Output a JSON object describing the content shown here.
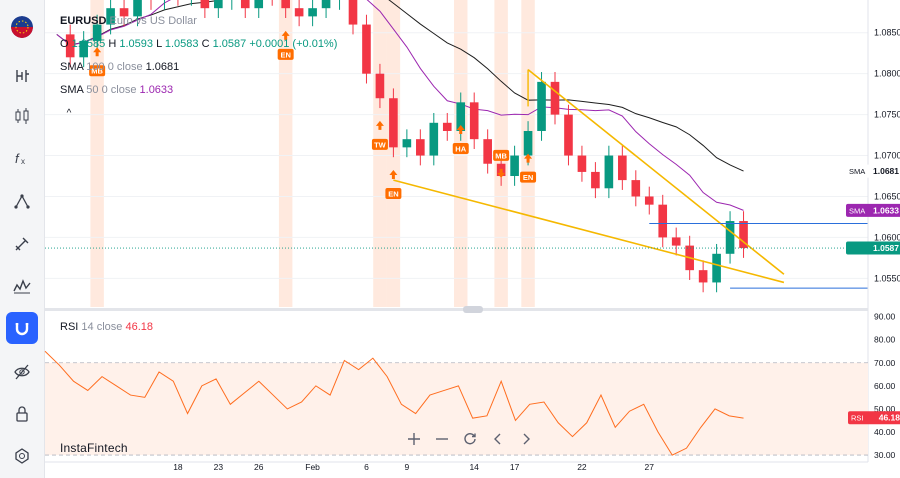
{
  "legend": {
    "symbol": "EURUSD",
    "description": "Euro vs US Dollar",
    "o_label": "O",
    "o_value": "1.0585",
    "h_label": "H",
    "h_value": "1.0593",
    "l_label": "L",
    "l_value": "1.0583",
    "c_label": "C",
    "c_value": "1.0587",
    "change": "+0.0001 (+0.01%)",
    "sma1_name": "SMA",
    "sma1_params": "100 0 close",
    "sma1_value": "1.0681",
    "sma2_name": "SMA",
    "sma2_params": "50 0 close",
    "sma2_value": "1.0633",
    "collapse_glyph": "^"
  },
  "rsi_legend": {
    "name": "RSI",
    "params": "14 close",
    "value": "46.18"
  },
  "watermark": "InstaFintech",
  "nav_icons": [
    "zoom-in-icon",
    "zoom-out-icon",
    "reset-icon",
    "scroll-left-icon",
    "scroll-right-icon"
  ],
  "sidebar_icons": [
    "flag-icon",
    "line-tool-icon",
    "candles-icon",
    "indicators-icon",
    "drawing-icon",
    "brush-icon",
    "pattern-icon",
    "magnet-icon",
    "hide-drawings-icon",
    "lock-icon",
    "settings-icon"
  ],
  "colors": {
    "up": "#089981",
    "down": "#f23645",
    "sma100": "#1e1e1e",
    "sma50": "#9c27b0",
    "wedge": "#f5b800",
    "rsi": "#ff6d1f",
    "pattern_marker": "#ff6d00",
    "active_tool": "#2962ff",
    "level_line": "#2a6fdb"
  },
  "chart_data": [
    {
      "type": "candlestick",
      "symbol": "EURUSD",
      "price_axis": {
        "ticks": [
          1.055,
          1.06,
          1.065,
          1.07,
          1.075,
          1.08,
          1.085
        ],
        "labels": [
          "1.0550",
          "1.0600",
          "1.0650",
          "1.0700",
          "1.0750",
          "1.0800",
          "1.0850"
        ],
        "range": [
          1.0515,
          1.089
        ]
      },
      "time_axis": {
        "labels": [
          "18",
          "23",
          "26",
          "Feb",
          "6",
          "9",
          "14",
          "17",
          "22",
          "27"
        ],
        "label_positions_x": [
          9.0,
          12.0,
          15.0,
          19.0,
          23.0,
          26.0,
          31.0,
          34.0,
          39.0,
          44.0
        ]
      },
      "series": [
        {
          "name": "EURUSD",
          "kind": "ohlc_path",
          "close_path": [
            [
              0,
              1.0848
            ],
            [
              1,
              1.082
            ],
            [
              2,
              1.084
            ],
            [
              3,
              1.086
            ],
            [
              4,
              1.088
            ],
            [
              5,
              1.087
            ],
            [
              6,
              1.09
            ],
            [
              7,
              1.089
            ],
            [
              8,
              1.091
            ],
            [
              9,
              1.0895
            ],
            [
              10,
              1.09
            ],
            [
              11,
              1.088
            ],
            [
              12,
              1.089
            ],
            [
              13,
              1.09
            ],
            [
              14,
              1.088
            ],
            [
              15,
              1.0905
            ],
            [
              16,
              1.0895
            ],
            [
              17,
              1.088
            ],
            [
              18,
              1.087
            ],
            [
              19,
              1.088
            ],
            [
              20,
              1.089
            ],
            [
              21,
              1.09
            ],
            [
              22,
              1.086
            ],
            [
              23,
              1.08
            ],
            [
              24,
              1.077
            ],
            [
              25,
              1.071
            ],
            [
              26,
              1.072
            ],
            [
              27,
              1.07
            ],
            [
              28,
              1.074
            ],
            [
              29,
              1.073
            ],
            [
              30,
              1.0765
            ],
            [
              31,
              1.072
            ],
            [
              32,
              1.069
            ],
            [
              33,
              1.0675
            ],
            [
              34,
              1.07
            ],
            [
              35,
              1.073
            ],
            [
              36,
              1.079
            ],
            [
              37,
              1.075
            ],
            [
              38,
              1.07
            ],
            [
              39,
              1.068
            ],
            [
              40,
              1.066
            ],
            [
              41,
              1.07
            ],
            [
              42,
              1.067
            ],
            [
              43,
              1.065
            ],
            [
              44,
              1.064
            ],
            [
              45,
              1.06
            ],
            [
              46,
              1.059
            ],
            [
              47,
              1.056
            ],
            [
              48,
              1.0545
            ],
            [
              49,
              1.058
            ],
            [
              50,
              1.062
            ],
            [
              51,
              1.0587
            ]
          ]
        },
        {
          "name": "SMA 100",
          "value_label": "1.0681"
        },
        {
          "name": "SMA 50",
          "value_label": "1.0633"
        }
      ],
      "last_price": 1.0587,
      "sma100_last": 1.0681,
      "sma50_last": 1.0633,
      "pattern_markers": [
        {
          "label": "MB",
          "direction": "up",
          "date_index": 3
        },
        {
          "label": "EN",
          "direction": "up",
          "date_index": 17
        },
        {
          "label": "TW",
          "direction": "up",
          "date_index": 24
        },
        {
          "label": "EN",
          "direction": "up",
          "date_index": 25
        },
        {
          "label": "HA",
          "direction": "up",
          "date_index": 30
        },
        {
          "label": "MB",
          "direction": "down",
          "date_index": 33
        },
        {
          "label": "EN",
          "direction": "up",
          "date_index": 35
        }
      ]
    },
    {
      "type": "line",
      "name": "RSI",
      "params": "14 close",
      "y_axis": {
        "ticks": [
          30,
          40,
          50,
          60,
          70,
          80,
          90
        ],
        "labels": [
          "30.00",
          "40.00",
          "50.00",
          "60.00",
          "70.00",
          "80.00",
          "90.00"
        ],
        "range": [
          27,
          92
        ]
      },
      "bands": [
        30,
        70
      ],
      "last_value": 46.18,
      "values": [
        75,
        69,
        62,
        58,
        64,
        60,
        56,
        55,
        66,
        62,
        48,
        60,
        63,
        52,
        57,
        62,
        56,
        50,
        53,
        60,
        56,
        71,
        67,
        72,
        64,
        52,
        48,
        56,
        58,
        60,
        46,
        47,
        62,
        45,
        52,
        53,
        44,
        38,
        44,
        56,
        42,
        49,
        52,
        40,
        30,
        33,
        42,
        50,
        47,
        46
      ]
    }
  ]
}
